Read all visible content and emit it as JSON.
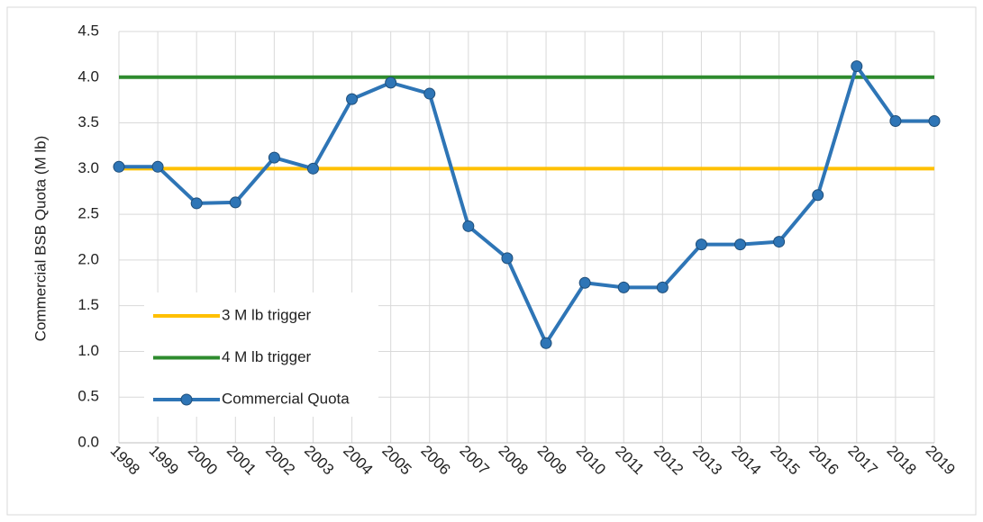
{
  "chart_data": {
    "type": "line",
    "y_axis_label": "Commercial BSB Quota (M lb)",
    "categories": [
      "1998",
      "1999",
      "2000",
      "2001",
      "2002",
      "2003",
      "2004",
      "2005",
      "2006",
      "2007",
      "2008",
      "2009",
      "2010",
      "2011",
      "2012",
      "2013",
      "2014",
      "2015",
      "2016",
      "2017",
      "2018",
      "2019"
    ],
    "series": [
      {
        "name": "3 M lb trigger",
        "color": "#ffc000",
        "markers": false,
        "values": [
          3,
          3,
          3,
          3,
          3,
          3,
          3,
          3,
          3,
          3,
          3,
          3,
          3,
          3,
          3,
          3,
          3,
          3,
          3,
          3,
          3,
          3
        ]
      },
      {
        "name": "4 M lb trigger",
        "color": "#2e8b2e",
        "markers": false,
        "values": [
          4,
          4,
          4,
          4,
          4,
          4,
          4,
          4,
          4,
          4,
          4,
          4,
          4,
          4,
          4,
          4,
          4,
          4,
          4,
          4,
          4,
          4
        ]
      },
      {
        "name": "Commercial Quota",
        "color": "#2e75b6",
        "markers": true,
        "values": [
          3.02,
          3.02,
          2.62,
          2.63,
          3.12,
          3.0,
          3.76,
          3.94,
          3.82,
          2.37,
          2.02,
          1.09,
          1.75,
          1.7,
          1.7,
          2.17,
          2.17,
          2.2,
          2.71,
          4.12,
          3.52,
          3.52
        ]
      }
    ],
    "ylim": [
      0,
      4.5
    ],
    "yticks": [
      {
        "value": 0,
        "label": "0.0"
      },
      0.5,
      {
        "value": 1,
        "label": "1.0"
      },
      1.5,
      {
        "value": 2,
        "label": "2.0"
      },
      2.5,
      {
        "value": 3,
        "label": "3.0"
      },
      3.5,
      {
        "value": 4,
        "label": "4.0"
      },
      4.5
    ],
    "grid": true,
    "legend": "left"
  }
}
